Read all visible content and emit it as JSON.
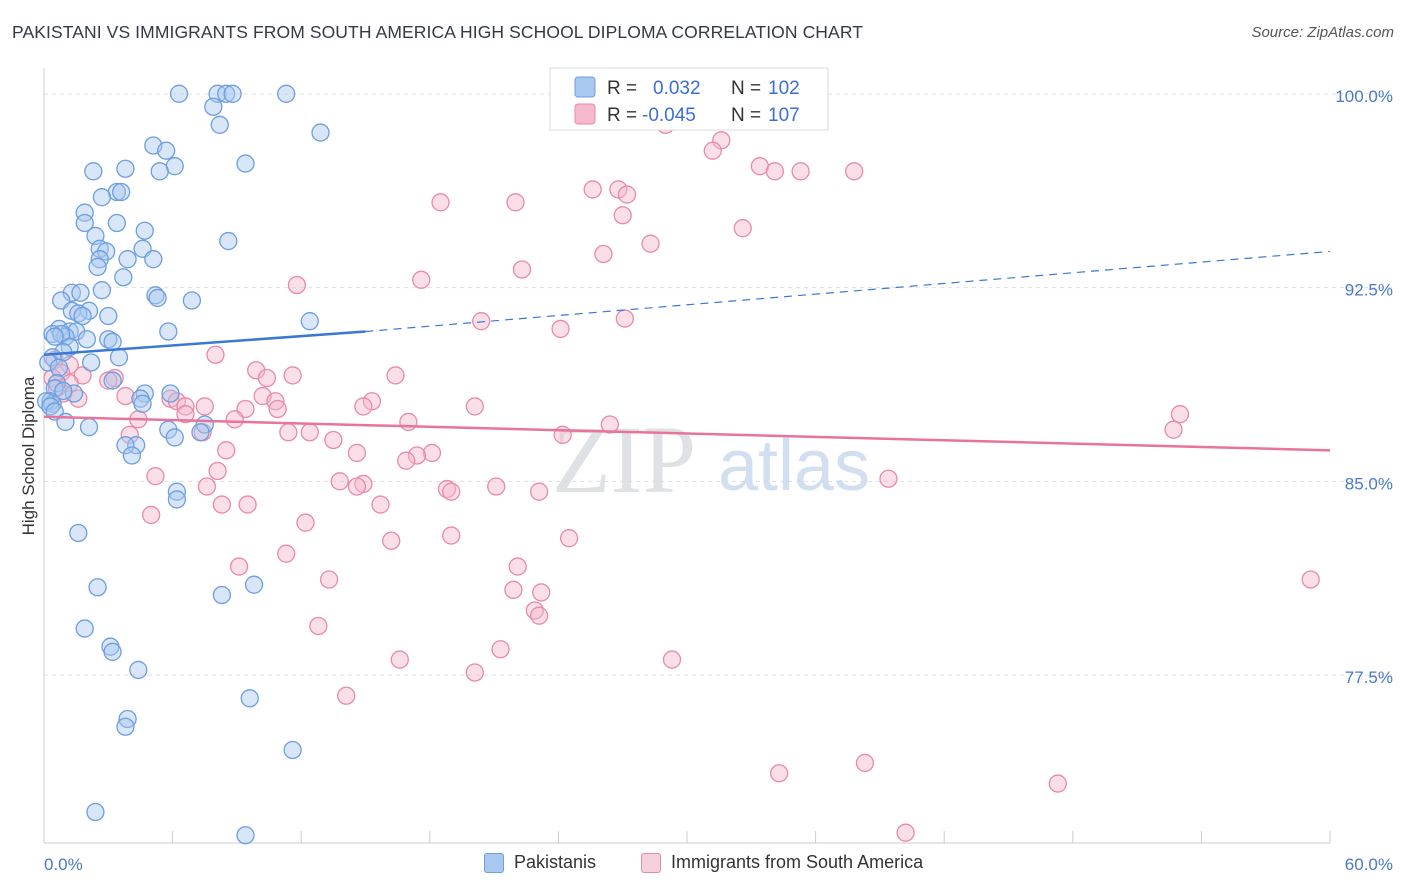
{
  "title": "PAKISTANI VS IMMIGRANTS FROM SOUTH AMERICA HIGH SCHOOL DIPLOMA CORRELATION CHART",
  "source": "Source: ZipAtlas.com",
  "watermark": {
    "zip": "ZIP",
    "atlas": "atlas"
  },
  "colors": {
    "blue_fill": "#a9c8f0",
    "blue_stroke": "#6d9ee0",
    "blue_line": "#3a78d4",
    "pink_fill": "#f5b8cc",
    "pink_stroke": "#e88aa8",
    "pink_line": "#e8739b",
    "grid": "#dde0e6",
    "tick_label": "#4a78c8"
  },
  "legend": {
    "rows": [
      {
        "r_label": "R =",
        "r_value": "0.032",
        "n_label": "N =",
        "n_value": "102"
      },
      {
        "r_label": "R =",
        "r_value": "-0.045",
        "n_label": "N =",
        "n_value": "107"
      }
    ]
  },
  "chart_data": {
    "type": "scatter",
    "title": "PAKISTANI VS IMMIGRANTS FROM SOUTH AMERICA HIGH SCHOOL DIPLOMA CORRELATION CHART",
    "xlabel": "",
    "ylabel": "High School Diploma",
    "xlim": [
      0,
      60
    ],
    "ylim": [
      71.0,
      101.0
    ],
    "x_tick_labels": [
      "0.0%",
      "60.0%"
    ],
    "y_ticks": [
      77.5,
      85.0,
      92.5,
      100.0
    ],
    "y_tick_labels": [
      "77.5%",
      "85.0%",
      "92.5%",
      "100.0%"
    ],
    "grid": true,
    "series": [
      {
        "name": "Pakistanis",
        "r": 0.032,
        "n": 102,
        "trend": {
          "x": [
            0,
            15
          ],
          "y": [
            89.9,
            90.8
          ],
          "dashed_extension_x": [
            15,
            60
          ],
          "dashed_extension_y": [
            90.8,
            93.9
          ]
        },
        "points": [
          [
            6.3,
            100.0
          ],
          [
            8.1,
            100.0
          ],
          [
            8.5,
            100.0
          ],
          [
            11.3,
            100.0
          ],
          [
            8.8,
            100.0
          ],
          [
            7.9,
            99.5
          ],
          [
            8.2,
            98.8
          ],
          [
            12.9,
            98.5
          ],
          [
            5.1,
            98.0
          ],
          [
            5.7,
            97.8
          ],
          [
            6.1,
            97.2
          ],
          [
            9.4,
            97.3
          ],
          [
            2.3,
            97.0
          ],
          [
            3.8,
            97.1
          ],
          [
            5.4,
            97.0
          ],
          [
            3.4,
            96.2
          ],
          [
            2.7,
            96.0
          ],
          [
            3.6,
            96.2
          ],
          [
            1.9,
            95.4
          ],
          [
            1.9,
            95.0
          ],
          [
            3.4,
            95.0
          ],
          [
            4.7,
            94.7
          ],
          [
            2.4,
            94.5
          ],
          [
            8.6,
            94.3
          ],
          [
            4.6,
            94.0
          ],
          [
            2.6,
            94.0
          ],
          [
            2.9,
            93.9
          ],
          [
            2.6,
            93.6
          ],
          [
            3.9,
            93.6
          ],
          [
            5.1,
            93.6
          ],
          [
            2.5,
            93.3
          ],
          [
            3.7,
            92.9
          ],
          [
            1.3,
            92.3
          ],
          [
            1.7,
            92.3
          ],
          [
            2.7,
            92.4
          ],
          [
            5.2,
            92.2
          ],
          [
            5.3,
            92.1
          ],
          [
            0.8,
            92.0
          ],
          [
            6.9,
            92.0
          ],
          [
            1.3,
            91.6
          ],
          [
            2.1,
            91.6
          ],
          [
            1.6,
            91.5
          ],
          [
            1.8,
            91.4
          ],
          [
            3.0,
            91.4
          ],
          [
            12.4,
            91.2
          ],
          [
            0.7,
            90.9
          ],
          [
            1.2,
            90.8
          ],
          [
            1.5,
            90.8
          ],
          [
            0.4,
            90.7
          ],
          [
            1.0,
            90.6
          ],
          [
            0.8,
            90.7
          ],
          [
            0.5,
            90.6
          ],
          [
            2.0,
            90.5
          ],
          [
            3.0,
            90.5
          ],
          [
            5.8,
            90.8
          ],
          [
            3.2,
            90.4
          ],
          [
            1.2,
            90.2
          ],
          [
            0.9,
            90.0
          ],
          [
            0.4,
            89.8
          ],
          [
            0.2,
            89.6
          ],
          [
            2.2,
            89.6
          ],
          [
            3.5,
            89.8
          ],
          [
            0.7,
            89.4
          ],
          [
            3.2,
            88.9
          ],
          [
            0.6,
            88.8
          ],
          [
            0.5,
            88.6
          ],
          [
            1.4,
            88.4
          ],
          [
            0.9,
            88.5
          ],
          [
            4.7,
            88.4
          ],
          [
            5.9,
            88.4
          ],
          [
            4.5,
            88.2
          ],
          [
            0.3,
            88.1
          ],
          [
            0.4,
            88.0
          ],
          [
            0.1,
            88.1
          ],
          [
            0.3,
            87.9
          ],
          [
            0.5,
            87.7
          ],
          [
            4.6,
            88.0
          ],
          [
            1.0,
            87.3
          ],
          [
            2.1,
            87.1
          ],
          [
            7.5,
            87.2
          ],
          [
            5.8,
            87.0
          ],
          [
            7.3,
            86.9
          ],
          [
            6.1,
            86.7
          ],
          [
            4.3,
            86.4
          ],
          [
            3.8,
            86.4
          ],
          [
            4.1,
            86.0
          ],
          [
            6.2,
            84.6
          ],
          [
            6.2,
            84.3
          ],
          [
            1.6,
            83.0
          ],
          [
            2.5,
            80.9
          ],
          [
            8.3,
            80.6
          ],
          [
            9.8,
            81.0
          ],
          [
            1.9,
            79.3
          ],
          [
            3.1,
            78.6
          ],
          [
            3.2,
            78.4
          ],
          [
            4.4,
            77.7
          ],
          [
            9.6,
            76.6
          ],
          [
            3.9,
            75.8
          ],
          [
            3.8,
            75.5
          ],
          [
            11.6,
            74.6
          ],
          [
            2.4,
            72.2
          ],
          [
            9.4,
            71.3
          ]
        ]
      },
      {
        "name": "Immigrants from South America",
        "r": -0.045,
        "n": 107,
        "trend": {
          "x": [
            0,
            60
          ],
          "y": [
            87.5,
            86.2
          ]
        },
        "points": [
          [
            35.8,
            100.0
          ],
          [
            29.0,
            98.8
          ],
          [
            31.6,
            98.2
          ],
          [
            31.2,
            97.8
          ],
          [
            33.4,
            97.2
          ],
          [
            34.1,
            97.0
          ],
          [
            35.3,
            97.0
          ],
          [
            37.8,
            97.0
          ],
          [
            25.6,
            96.3
          ],
          [
            26.8,
            96.3
          ],
          [
            27.2,
            96.1
          ],
          [
            18.5,
            95.8
          ],
          [
            22.0,
            95.8
          ],
          [
            27.0,
            95.3
          ],
          [
            32.6,
            94.8
          ],
          [
            28.3,
            94.2
          ],
          [
            26.1,
            93.8
          ],
          [
            22.3,
            93.2
          ],
          [
            17.6,
            92.8
          ],
          [
            11.8,
            92.6
          ],
          [
            20.4,
            91.2
          ],
          [
            27.1,
            91.3
          ],
          [
            24.1,
            90.9
          ],
          [
            8.0,
            89.9
          ],
          [
            0.5,
            89.7
          ],
          [
            1.2,
            89.5
          ],
          [
            0.8,
            89.2
          ],
          [
            0.4,
            89.0
          ],
          [
            1.8,
            89.1
          ],
          [
            3.3,
            89.0
          ],
          [
            9.9,
            89.3
          ],
          [
            10.4,
            89.0
          ],
          [
            11.6,
            89.1
          ],
          [
            16.4,
            89.1
          ],
          [
            1.2,
            88.8
          ],
          [
            3.0,
            88.9
          ],
          [
            0.6,
            88.6
          ],
          [
            0.9,
            88.4
          ],
          [
            1.6,
            88.2
          ],
          [
            3.8,
            88.3
          ],
          [
            5.9,
            88.2
          ],
          [
            6.2,
            88.1
          ],
          [
            10.2,
            88.3
          ],
          [
            10.8,
            88.1
          ],
          [
            15.3,
            88.1
          ],
          [
            6.6,
            87.9
          ],
          [
            7.5,
            87.9
          ],
          [
            9.4,
            87.8
          ],
          [
            10.9,
            87.8
          ],
          [
            14.9,
            87.9
          ],
          [
            20.1,
            87.9
          ],
          [
            4.4,
            87.4
          ],
          [
            6.6,
            87.6
          ],
          [
            8.9,
            87.4
          ],
          [
            17.0,
            87.3
          ],
          [
            26.4,
            87.2
          ],
          [
            53.0,
            87.6
          ],
          [
            52.7,
            87.0
          ],
          [
            4.0,
            86.8
          ],
          [
            7.4,
            86.9
          ],
          [
            11.4,
            86.9
          ],
          [
            12.4,
            86.9
          ],
          [
            13.5,
            86.6
          ],
          [
            24.2,
            86.8
          ],
          [
            8.5,
            86.2
          ],
          [
            18.1,
            86.1
          ],
          [
            17.4,
            86.0
          ],
          [
            14.6,
            86.1
          ],
          [
            16.9,
            85.8
          ],
          [
            8.1,
            85.4
          ],
          [
            5.2,
            85.2
          ],
          [
            13.8,
            85.0
          ],
          [
            14.9,
            84.9
          ],
          [
            14.6,
            84.8
          ],
          [
            7.6,
            84.8
          ],
          [
            18.8,
            84.7
          ],
          [
            21.1,
            84.8
          ],
          [
            23.1,
            84.6
          ],
          [
            19.0,
            84.6
          ],
          [
            39.4,
            85.1
          ],
          [
            9.5,
            84.1
          ],
          [
            8.3,
            84.1
          ],
          [
            15.7,
            84.1
          ],
          [
            5.0,
            83.7
          ],
          [
            12.2,
            83.4
          ],
          [
            19.0,
            82.9
          ],
          [
            16.2,
            82.7
          ],
          [
            24.5,
            82.8
          ],
          [
            11.3,
            82.2
          ],
          [
            9.1,
            81.7
          ],
          [
            22.1,
            81.7
          ],
          [
            13.3,
            81.2
          ],
          [
            59.1,
            81.2
          ],
          [
            21.9,
            80.8
          ],
          [
            23.2,
            80.7
          ],
          [
            22.9,
            80.0
          ],
          [
            23.1,
            79.8
          ],
          [
            12.8,
            79.4
          ],
          [
            21.3,
            78.5
          ],
          [
            16.6,
            78.1
          ],
          [
            29.3,
            78.1
          ],
          [
            20.1,
            77.6
          ],
          [
            14.1,
            76.7
          ],
          [
            34.3,
            73.7
          ],
          [
            38.3,
            74.1
          ],
          [
            47.3,
            73.3
          ],
          [
            40.2,
            71.4
          ]
        ]
      }
    ]
  },
  "bottom_legend": [
    {
      "label": "Pakistanis"
    },
    {
      "label": "Immigrants from South America"
    }
  ]
}
